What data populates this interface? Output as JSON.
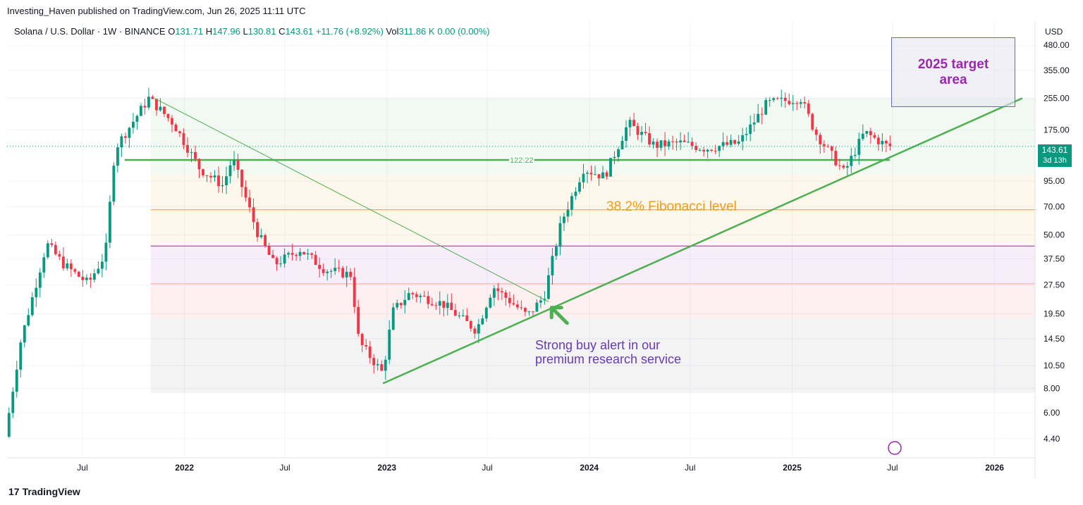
{
  "header": {
    "publisher": "Investing_Haven published on TradingView.com, Jun 26, 2025 11:11 UTC"
  },
  "legend": {
    "symbol": "Solana / U.S. Dollar · 1W · BINANCE",
    "open_label": "O",
    "open": "131.71",
    "high_label": "H",
    "high": "147.96",
    "low_label": "L",
    "low": "130.81",
    "close_label": "C",
    "close": "143.61",
    "change": "+11.76 (+8.92%)",
    "vol_label": "Vol",
    "vol": "311.86 K",
    "vol_change": "0.00 (0.00%)"
  },
  "price_scale": {
    "currency": "USD",
    "last_price": "143.61",
    "countdown": "3d 13h"
  },
  "annotations": {
    "target_line1": "2025 target",
    "target_line2": "area",
    "fib_label": "38.2% Fibonacci level",
    "buy_line1": "Strong buy alert in our",
    "buy_line2": "premium research service",
    "level_label": "122.22"
  },
  "brand": {
    "logo_text": "TradingView"
  },
  "colors": {
    "up": "#089981",
    "down": "#f23645",
    "trend": "#4caf50",
    "fib": "#f59b13",
    "purple_line": "#9c27b0",
    "red_line": "#f4a6a6"
  },
  "chart_data": {
    "type": "candlestick",
    "title": "Solana / U.S. Dollar · 1W · BINANCE",
    "y_scale": "log",
    "ylim": [
      3.5,
      640
    ],
    "y_ticks": [
      480,
      355,
      255,
      175,
      95,
      70,
      50,
      37.5,
      27.5,
      19.5,
      14.5,
      10.5,
      8,
      6,
      4.4
    ],
    "y_tick_labels": [
      "480.00",
      "355.00",
      "255.00",
      "175.00",
      "95.00",
      "70.00",
      "50.00",
      "37.50",
      "27.50",
      "19.50",
      "14.50",
      "10.50",
      "8.00",
      "6.00",
      "4.40"
    ],
    "x_range": [
      "2021-02-15",
      "2026-03-15"
    ],
    "x_ticks": [
      {
        "label": "Jul",
        "date": "2021-07-01"
      },
      {
        "label": "2022",
        "date": "2022-01-01"
      },
      {
        "label": "Jul",
        "date": "2022-07-01"
      },
      {
        "label": "2023",
        "date": "2023-01-01"
      },
      {
        "label": "Jul",
        "date": "2023-07-01"
      },
      {
        "label": "2024",
        "date": "2024-01-01"
      },
      {
        "label": "Jul",
        "date": "2024-07-01"
      },
      {
        "label": "2025",
        "date": "2025-01-01"
      },
      {
        "label": "Jul",
        "date": "2025-07-01"
      },
      {
        "label": "2026",
        "date": "2026-01-01"
      }
    ],
    "price_path": [
      [
        "2021-02-15",
        4.5
      ],
      [
        "2021-03-15",
        14
      ],
      [
        "2021-05-01",
        45
      ],
      [
        "2021-06-01",
        35
      ],
      [
        "2021-07-15",
        28
      ],
      [
        "2021-08-15",
        40
      ],
      [
        "2021-09-01",
        140
      ],
      [
        "2021-11-01",
        255
      ],
      [
        "2021-12-15",
        190
      ],
      [
        "2022-02-01",
        110
      ],
      [
        "2022-03-15",
        90
      ],
      [
        "2022-04-01",
        125
      ],
      [
        "2022-05-15",
        52
      ],
      [
        "2022-06-15",
        35
      ],
      [
        "2022-08-01",
        42
      ],
      [
        "2022-09-15",
        33
      ],
      [
        "2022-11-01",
        31
      ],
      [
        "2022-11-15",
        14
      ],
      [
        "2022-12-28",
        9.6
      ],
      [
        "2023-01-15",
        20
      ],
      [
        "2023-02-15",
        25
      ],
      [
        "2023-04-15",
        22
      ],
      [
        "2023-06-15",
        16
      ],
      [
        "2023-07-15",
        27
      ],
      [
        "2023-09-15",
        19
      ],
      [
        "2023-10-15",
        24
      ],
      [
        "2023-11-15",
        58
      ],
      [
        "2023-12-25",
        110
      ],
      [
        "2024-02-01",
        100
      ],
      [
        "2024-03-15",
        190
      ],
      [
        "2024-05-01",
        145
      ],
      [
        "2024-06-15",
        150
      ],
      [
        "2024-08-01",
        140
      ],
      [
        "2024-10-01",
        150
      ],
      [
        "2024-11-20",
        240
      ],
      [
        "2025-01-20",
        255
      ],
      [
        "2025-02-15",
        170
      ],
      [
        "2025-04-08",
        105
      ],
      [
        "2025-05-15",
        170
      ],
      [
        "2025-06-26",
        143.61
      ]
    ],
    "horizontal_levels": [
      {
        "label": "122.22",
        "value": 122.22
      },
      {
        "label": "38.2% Fibonacci level",
        "value": 67.5
      },
      {
        "value": 43.8
      },
      {
        "value": 27.9
      }
    ],
    "fib_zones": [
      {
        "from": 255,
        "to": 103
      },
      {
        "from": 103,
        "to": 43.8
      },
      {
        "from": 43.8,
        "to": 27.9
      },
      {
        "from": 27.9,
        "to": 18.5
      },
      {
        "from": 18.5,
        "to": 7.6
      }
    ],
    "trendlines": [
      {
        "from": [
          "2022-12-25",
          8.5
        ],
        "to": [
          "2026-02-20",
          255
        ]
      },
      {
        "from": [
          "2021-11-08",
          255
        ],
        "to": [
          "2023-10-20",
          22.5
        ]
      }
    ],
    "last_close": 143.61
  }
}
